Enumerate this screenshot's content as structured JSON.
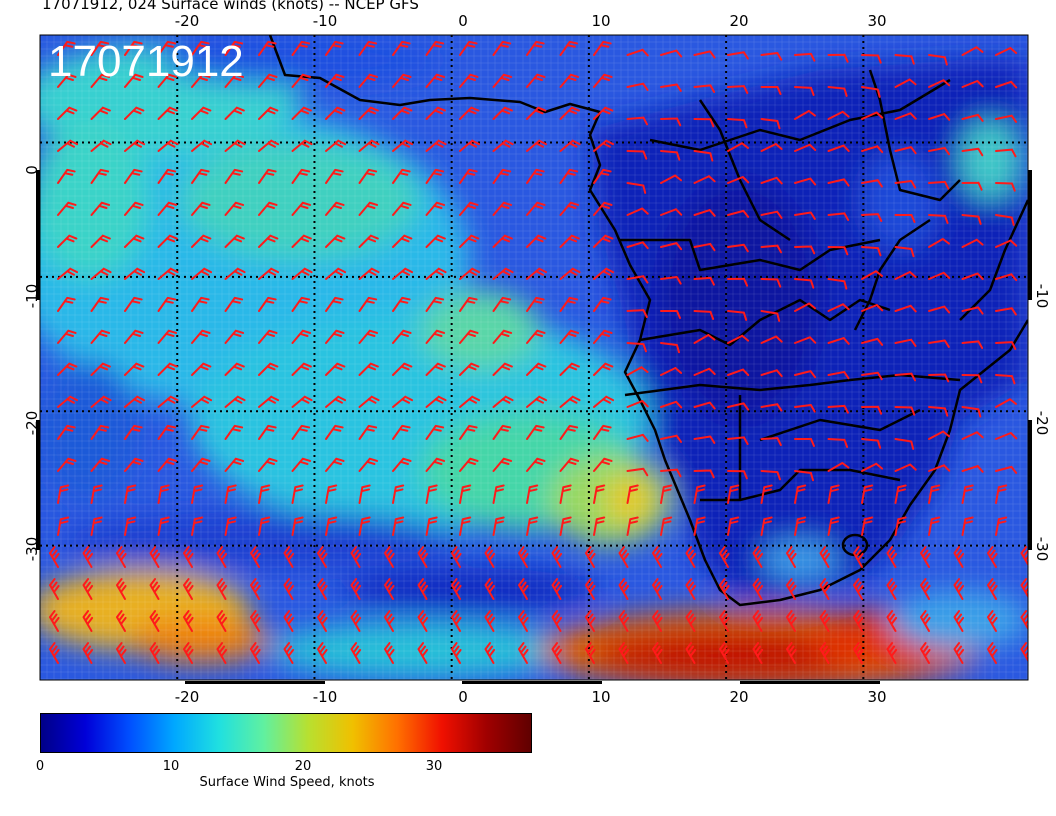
{
  "header": {
    "title": "17071912, 024 Surface winds (knots) -- NCEP GFS"
  },
  "map": {
    "stamp": "17071912",
    "lon_range": [
      -30,
      42
    ],
    "lat_range": [
      -40,
      8
    ],
    "lon_ticks_top": [
      "-20",
      "-10",
      "0",
      "10",
      "20",
      "30"
    ],
    "lon_ticks_bottom": [
      "-20",
      "-10",
      "0",
      "10",
      "20",
      "30"
    ],
    "lat_ticks_left": [
      "0",
      "-10",
      "-20",
      "-30"
    ],
    "lat_ticks_right": [
      "-10",
      "-20",
      "-30"
    ],
    "grid": "dotted",
    "barb_color": "#ff1a1a"
  },
  "colorbar": {
    "label": "Surface Wind Speed, knots",
    "ticks": [
      "0",
      "10",
      "20",
      "30"
    ],
    "range": [
      0,
      36
    ],
    "colors": [
      "#000088",
      "#0000d8",
      "#0050ff",
      "#00a8ff",
      "#20e0e0",
      "#60f0a0",
      "#b8e030",
      "#f0c000",
      "#ff7000",
      "#f01000",
      "#a00000",
      "#600000"
    ]
  }
}
